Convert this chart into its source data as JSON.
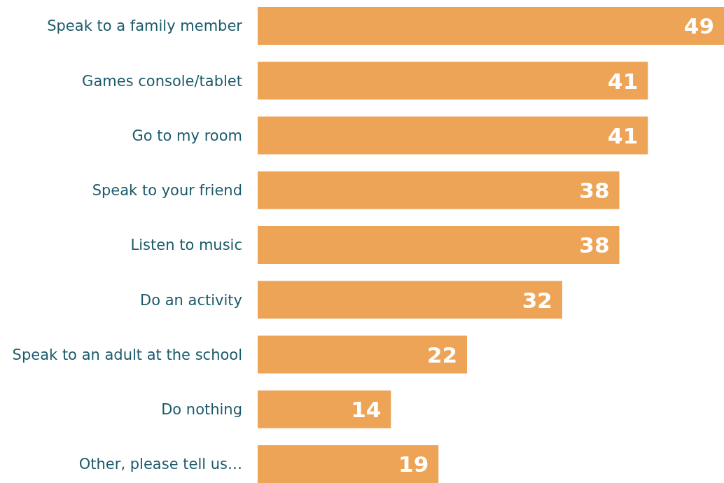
{
  "chart_data": {
    "type": "bar",
    "orientation": "horizontal",
    "categories": [
      "Speak to a family member",
      "Games console/tablet",
      "Go to my room",
      "Speak to your friend",
      "Listen to music",
      "Do an activity",
      "Speak to an adult at the school",
      "Do nothing",
      "Other, please tell us…"
    ],
    "values": [
      49,
      41,
      41,
      38,
      38,
      32,
      22,
      14,
      19
    ],
    "color": "#eda456",
    "data_labels": true
  }
}
